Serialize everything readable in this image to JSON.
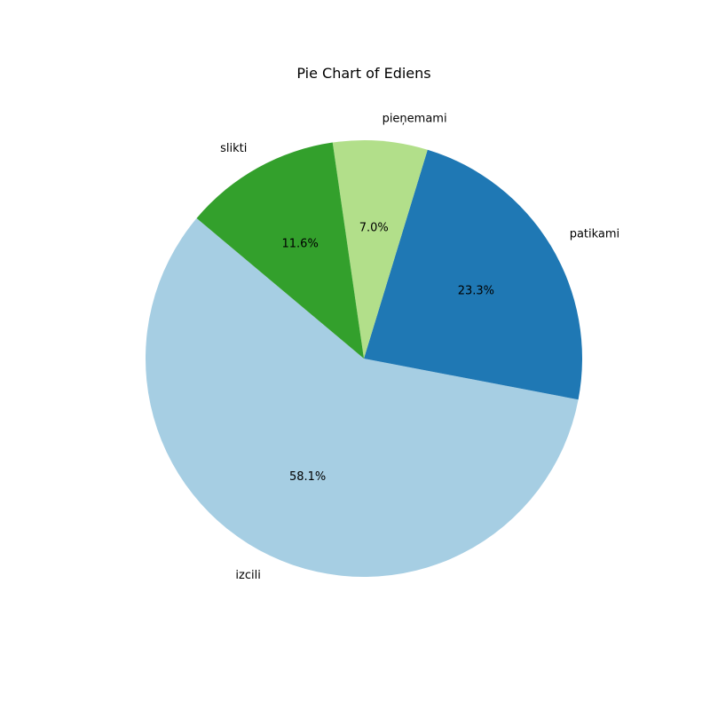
{
  "chart_data": {
    "type": "pie",
    "title": "Pie Chart of Ediens",
    "slices": [
      {
        "label": "izcili",
        "percent": 58.1,
        "percent_label": "58.1%",
        "color": "#a6cee3"
      },
      {
        "label": "patikami",
        "percent": 23.3,
        "percent_label": "23.3%",
        "color": "#1f78b4"
      },
      {
        "label": "pieņemami",
        "percent": 7.0,
        "percent_label": "7.0%",
        "color": "#b2df8a"
      },
      {
        "label": "slikti",
        "percent": 11.6,
        "percent_label": "11.6%",
        "color": "#33a02c"
      }
    ],
    "start_angle_deg": 140,
    "direction": "counterclockwise",
    "legend": "none"
  }
}
